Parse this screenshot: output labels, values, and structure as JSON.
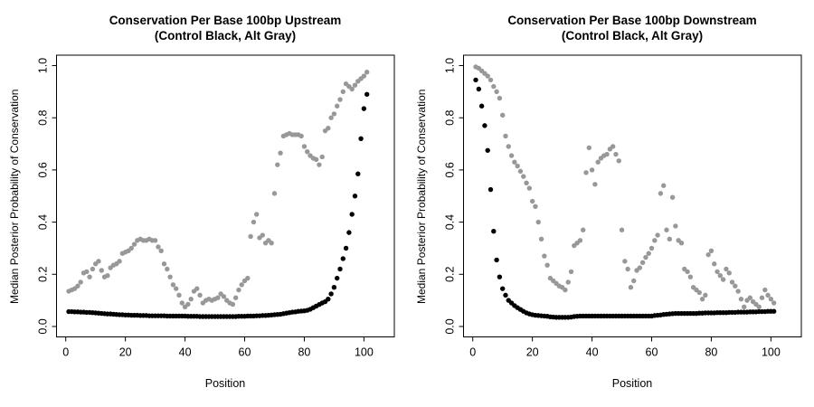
{
  "figure": {
    "background_color": "#ffffff",
    "frame_color": "#000000",
    "control_color": "#000000",
    "alt_color": "#989898"
  },
  "chart_data": [
    {
      "type": "scatter",
      "title": "Conservation Per Base 100bp Upstream",
      "subtitle": "(Control Black, Alt Gray)",
      "xlabel": "Position",
      "ylabel": "Median Posterior Probability of Conservation",
      "xlim": [
        -3.1,
        110.2
      ],
      "ylim": [
        -0.04,
        1.04
      ],
      "x_ticks": [
        0,
        20,
        40,
        60,
        80,
        100
      ],
      "x_tick_labels": [
        "0",
        "20",
        "40",
        "60",
        "80",
        "100"
      ],
      "y_ticks": [
        0.0,
        0.2,
        0.4,
        0.6,
        0.8,
        1.0
      ],
      "y_tick_labels": [
        "0.0",
        "0.2",
        "0.4",
        "0.6",
        "0.8",
        "1.0"
      ],
      "grid": false,
      "legend": "none (colors explained in title)",
      "x_start": 1,
      "series": [
        {
          "name": "Control",
          "color": "#000000",
          "values": [
            0.057,
            0.057,
            0.056,
            0.056,
            0.055,
            0.055,
            0.054,
            0.054,
            0.053,
            0.052,
            0.051,
            0.05,
            0.049,
            0.048,
            0.048,
            0.047,
            0.046,
            0.045,
            0.045,
            0.044,
            0.044,
            0.043,
            0.043,
            0.043,
            0.042,
            0.042,
            0.042,
            0.041,
            0.041,
            0.041,
            0.041,
            0.041,
            0.041,
            0.04,
            0.04,
            0.04,
            0.04,
            0.04,
            0.04,
            0.04,
            0.039,
            0.039,
            0.039,
            0.039,
            0.038,
            0.038,
            0.038,
            0.038,
            0.038,
            0.038,
            0.038,
            0.038,
            0.038,
            0.038,
            0.038,
            0.038,
            0.038,
            0.039,
            0.039,
            0.039,
            0.04,
            0.04,
            0.04,
            0.041,
            0.041,
            0.042,
            0.042,
            0.043,
            0.044,
            0.045,
            0.046,
            0.047,
            0.049,
            0.051,
            0.053,
            0.055,
            0.056,
            0.058,
            0.059,
            0.06,
            0.062,
            0.066,
            0.072,
            0.078,
            0.084,
            0.09,
            0.095,
            0.105,
            0.125,
            0.15,
            0.185,
            0.22,
            0.26,
            0.3,
            0.36,
            0.43,
            0.5,
            0.585,
            0.72,
            0.835,
            0.89
          ]
        },
        {
          "name": "Alt",
          "color": "#989898",
          "values": [
            0.135,
            0.14,
            0.145,
            0.155,
            0.17,
            0.205,
            0.21,
            0.19,
            0.22,
            0.24,
            0.25,
            0.215,
            0.19,
            0.195,
            0.225,
            0.235,
            0.24,
            0.25,
            0.28,
            0.285,
            0.29,
            0.3,
            0.315,
            0.33,
            0.335,
            0.33,
            0.33,
            0.335,
            0.33,
            0.33,
            0.305,
            0.29,
            0.24,
            0.22,
            0.19,
            0.16,
            0.145,
            0.12,
            0.09,
            0.075,
            0.085,
            0.105,
            0.135,
            0.145,
            0.12,
            0.09,
            0.1,
            0.105,
            0.1,
            0.105,
            0.11,
            0.125,
            0.115,
            0.1,
            0.09,
            0.085,
            0.11,
            0.14,
            0.16,
            0.175,
            0.185,
            0.345,
            0.4,
            0.43,
            0.34,
            0.35,
            0.32,
            0.33,
            0.32,
            0.51,
            0.62,
            0.665,
            0.73,
            0.735,
            0.74,
            0.735,
            0.735,
            0.735,
            0.73,
            0.69,
            0.67,
            0.655,
            0.645,
            0.64,
            0.62,
            0.65,
            0.75,
            0.76,
            0.8,
            0.815,
            0.845,
            0.87,
            0.9,
            0.93,
            0.92,
            0.91,
            0.925,
            0.94,
            0.95,
            0.96,
            0.975
          ]
        }
      ]
    },
    {
      "type": "scatter",
      "title": "Conservation Per Base 100bp Downstream",
      "subtitle": "(Control Black, Alt Gray)",
      "xlabel": "Position",
      "ylabel": "Median Posterior Probability of Conservation",
      "xlim": [
        -3.1,
        110.2
      ],
      "ylim": [
        -0.04,
        1.04
      ],
      "x_ticks": [
        0,
        20,
        40,
        60,
        80,
        100
      ],
      "x_tick_labels": [
        "0",
        "20",
        "40",
        "60",
        "80",
        "100"
      ],
      "y_ticks": [
        0.0,
        0.2,
        0.4,
        0.6,
        0.8,
        1.0
      ],
      "y_tick_labels": [
        "0.0",
        "0.2",
        "0.4",
        "0.6",
        "0.8",
        "1.0"
      ],
      "grid": false,
      "legend": "none (colors explained in title)",
      "x_start": 1,
      "series": [
        {
          "name": "Control",
          "color": "#000000",
          "values": [
            0.945,
            0.91,
            0.845,
            0.77,
            0.675,
            0.525,
            0.365,
            0.255,
            0.19,
            0.145,
            0.12,
            0.1,
            0.09,
            0.08,
            0.072,
            0.065,
            0.058,
            0.052,
            0.048,
            0.045,
            0.043,
            0.042,
            0.041,
            0.04,
            0.039,
            0.037,
            0.036,
            0.035,
            0.035,
            0.035,
            0.035,
            0.035,
            0.036,
            0.038,
            0.039,
            0.04,
            0.04,
            0.04,
            0.04,
            0.04,
            0.04,
            0.04,
            0.04,
            0.04,
            0.04,
            0.04,
            0.04,
            0.04,
            0.04,
            0.04,
            0.04,
            0.04,
            0.04,
            0.04,
            0.04,
            0.04,
            0.04,
            0.04,
            0.04,
            0.04,
            0.042,
            0.043,
            0.044,
            0.046,
            0.047,
            0.048,
            0.049,
            0.05,
            0.05,
            0.05,
            0.05,
            0.05,
            0.05,
            0.05,
            0.05,
            0.051,
            0.051,
            0.052,
            0.052,
            0.052,
            0.052,
            0.053,
            0.053,
            0.053,
            0.053,
            0.054,
            0.054,
            0.054,
            0.055,
            0.055,
            0.055,
            0.055,
            0.056,
            0.056,
            0.056,
            0.057,
            0.057,
            0.057,
            0.058,
            0.058,
            0.058
          ]
        },
        {
          "name": "Alt",
          "color": "#989898",
          "values": [
            0.995,
            0.99,
            0.98,
            0.97,
            0.96,
            0.945,
            0.92,
            0.9,
            0.875,
            0.81,
            0.73,
            0.69,
            0.655,
            0.63,
            0.615,
            0.595,
            0.575,
            0.55,
            0.53,
            0.48,
            0.46,
            0.4,
            0.335,
            0.27,
            0.235,
            0.185,
            0.175,
            0.165,
            0.155,
            0.15,
            0.14,
            0.17,
            0.21,
            0.31,
            0.32,
            0.33,
            0.37,
            0.59,
            0.685,
            0.6,
            0.545,
            0.63,
            0.645,
            0.655,
            0.66,
            0.68,
            0.69,
            0.66,
            0.635,
            0.37,
            0.25,
            0.22,
            0.15,
            0.175,
            0.215,
            0.225,
            0.245,
            0.265,
            0.28,
            0.3,
            0.33,
            0.35,
            0.51,
            0.54,
            0.37,
            0.335,
            0.495,
            0.385,
            0.33,
            0.32,
            0.22,
            0.21,
            0.19,
            0.15,
            0.14,
            0.13,
            0.105,
            0.12,
            0.275,
            0.29,
            0.24,
            0.21,
            0.195,
            0.18,
            0.22,
            0.205,
            0.17,
            0.155,
            0.135,
            0.105,
            0.075,
            0.1,
            0.11,
            0.095,
            0.085,
            0.075,
            0.11,
            0.14,
            0.12,
            0.105,
            0.09
          ]
        }
      ]
    }
  ]
}
